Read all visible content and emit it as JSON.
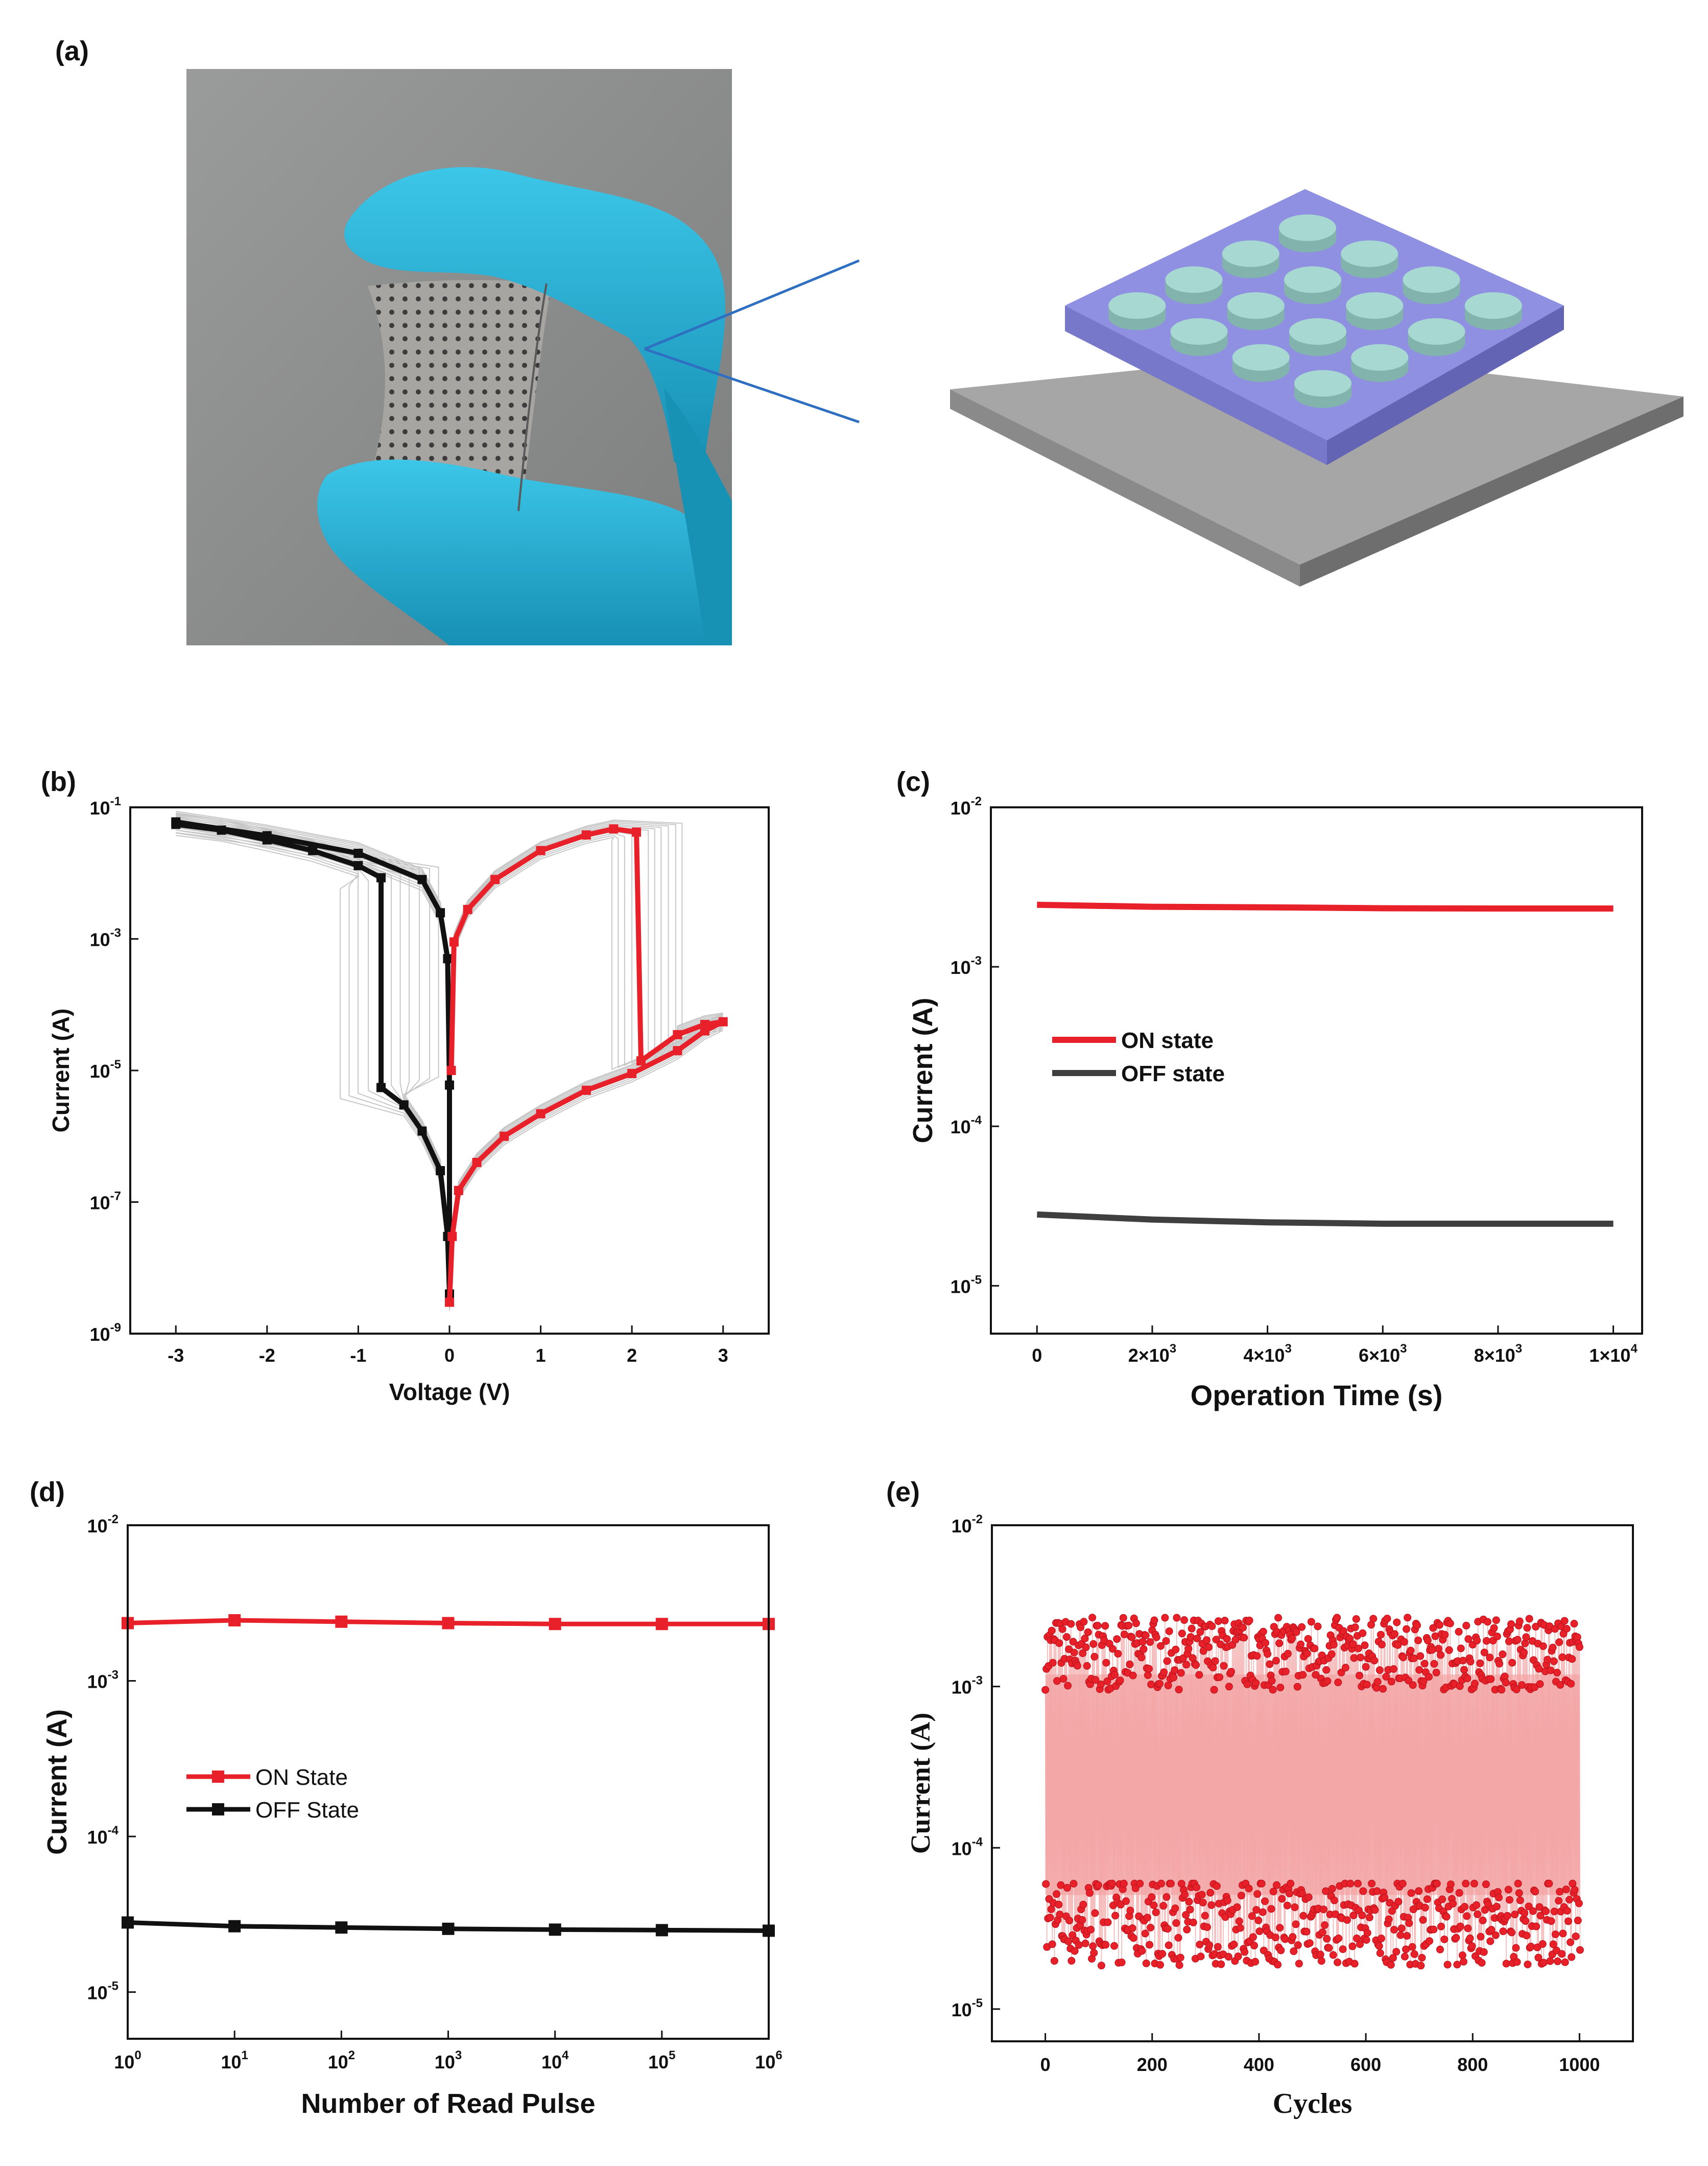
{
  "panels": {
    "a": "(a)",
    "b": "(b)",
    "c": "(c)",
    "d": "(d)",
    "e": "(e)"
  },
  "colors": {
    "glove": "#22b3d8",
    "glove_shadow": "#1591b3",
    "photo_bg": "#8f9090",
    "film": "#9a9898",
    "device_top": "#8d8ee0",
    "device_side": "#6c6dbb",
    "electrode": "#a7d9d2",
    "substrate_top": "#a5a5a5",
    "substrate_side": "#6f6f6f",
    "callout_line": "#2f6fc1",
    "on_red": "#e8202a",
    "off_black": "#111111",
    "off_gray": "#3f3f3f",
    "fill_pink": "#f7b6b6"
  },
  "chart_data": [
    {
      "panel": "b",
      "type": "line",
      "xlabel": "Voltage (V)",
      "ylabel": "Current (A)",
      "xlim": [
        -3.5,
        3.5
      ],
      "ylim_log10": [
        -9,
        -1
      ],
      "x_ticks": [
        "-3",
        "-2",
        "-1",
        "0",
        "1",
        "2",
        "3"
      ],
      "y_ticks": [
        "10-1",
        "10-3",
        "10-5",
        "10-7",
        "10-9"
      ],
      "series": [
        {
          "color": "black",
          "points": [
            [
              -3.0,
              0.055
            ],
            [
              -2.5,
              0.045
            ],
            [
              -2.0,
              0.032
            ],
            [
              -1.5,
              0.022
            ],
            [
              -1.0,
              0.013
            ],
            [
              -0.75,
              0.0085
            ],
            [
              -0.75,
              5.5e-06
            ],
            [
              -0.5,
              3e-06
            ],
            [
              -0.3,
              1.2e-06
            ],
            [
              -0.1,
              3e-07
            ],
            [
              -0.02,
              3e-08
            ],
            [
              0.0,
              4e-09
            ],
            [
              0.0,
              6e-06
            ],
            [
              -0.02,
              0.0005
            ],
            [
              -0.1,
              0.0025
            ],
            [
              -0.3,
              0.008
            ],
            [
              -1.0,
              0.02
            ],
            [
              -2.0,
              0.037
            ],
            [
              -3.0,
              0.06
            ]
          ]
        },
        {
          "color": "red",
          "points": [
            [
              0.0,
              3e-09
            ],
            [
              0.03,
              3e-08
            ],
            [
              0.1,
              1.5e-07
            ],
            [
              0.3,
              4e-07
            ],
            [
              0.6,
              1e-06
            ],
            [
              1.0,
              2.2e-06
            ],
            [
              1.5,
              5e-06
            ],
            [
              2.0,
              9e-06
            ],
            [
              2.5,
              2e-05
            ],
            [
              2.8,
              4e-05
            ],
            [
              3.0,
              5.5e-05
            ],
            [
              2.8,
              5e-05
            ],
            [
              2.5,
              3.5e-05
            ],
            [
              2.1,
              1.4e-05
            ],
            [
              2.05,
              0.042
            ],
            [
              1.8,
              0.047
            ],
            [
              1.5,
              0.038
            ],
            [
              1.0,
              0.022
            ],
            [
              0.5,
              0.008
            ],
            [
              0.2,
              0.0028
            ],
            [
              0.05,
              0.0009
            ],
            [
              0.02,
              1e-05
            ]
          ]
        }
      ]
    },
    {
      "panel": "c",
      "type": "line",
      "xlabel": "Operation Time (s)",
      "ylabel": "Current (A)",
      "xlim": [
        -800,
        10500
      ],
      "ylim_log10": [
        -5.3,
        -2
      ],
      "x_ticks": [
        "0",
        "2×103",
        "4×103",
        "6×103",
        "8×103",
        "1×104"
      ],
      "y_ticks": [
        "10-2",
        "10-3",
        "10-4",
        "10-5"
      ],
      "legend": [
        "ON state",
        "OFF state"
      ],
      "series": [
        {
          "name": "ON state",
          "color": "red",
          "points": [
            [
              0,
              0.00245
            ],
            [
              2000,
              0.00238
            ],
            [
              4000,
              0.00236
            ],
            [
              6000,
              0.00233
            ],
            [
              8000,
              0.00232
            ],
            [
              10000,
              0.00232
            ]
          ]
        },
        {
          "name": "OFF state",
          "color": "gray",
          "points": [
            [
              0,
              2.8e-05
            ],
            [
              2000,
              2.6e-05
            ],
            [
              4000,
              2.5e-05
            ],
            [
              6000,
              2.45e-05
            ],
            [
              8000,
              2.45e-05
            ],
            [
              10000,
              2.45e-05
            ]
          ]
        }
      ]
    },
    {
      "panel": "d",
      "type": "line",
      "xlabel": "Number of Read Pulse",
      "ylabel": "Current (A)",
      "xlim_log10": [
        0,
        6
      ],
      "ylim_log10": [
        -5.3,
        -2
      ],
      "x_ticks": [
        "100",
        "101",
        "102",
        "103",
        "104",
        "105",
        "106"
      ],
      "y_ticks": [
        "10-2",
        "10-3",
        "10-4",
        "10-5"
      ],
      "legend": [
        "ON State",
        "OFF State"
      ],
      "series": [
        {
          "name": "ON State",
          "color": "red",
          "points": [
            [
              1,
              0.00235
            ],
            [
              10,
              0.00245
            ],
            [
              100,
              0.0024
            ],
            [
              1000,
              0.00235
            ],
            [
              10000,
              0.00232
            ],
            [
              100000,
              0.00232
            ],
            [
              1000000,
              0.00232
            ]
          ]
        },
        {
          "name": "OFF State",
          "color": "black",
          "points": [
            [
              1,
              2.8e-05
            ],
            [
              10,
              2.65e-05
            ],
            [
              100,
              2.6e-05
            ],
            [
              1000,
              2.55e-05
            ],
            [
              10000,
              2.52e-05
            ],
            [
              100000,
              2.5e-05
            ],
            [
              1000000,
              2.48e-05
            ]
          ]
        }
      ]
    },
    {
      "panel": "e",
      "type": "scatter",
      "xlabel": "Cycles",
      "ylabel": "Current (A)",
      "xlim": [
        -100,
        1100
      ],
      "ylim_log10": [
        -5.2,
        -2
      ],
      "x_ticks": [
        "0",
        "200",
        "400",
        "600",
        "800",
        "1000"
      ],
      "y_ticks": [
        "10-2",
        "10-3",
        "10-4",
        "10-5"
      ],
      "cycles": 1000,
      "on_range": [
        0.00095,
        0.003
      ],
      "off_range": [
        1.2e-05,
        6e-05
      ],
      "on_typical": 0.0016,
      "off_typical": 3.5e-05
    }
  ]
}
